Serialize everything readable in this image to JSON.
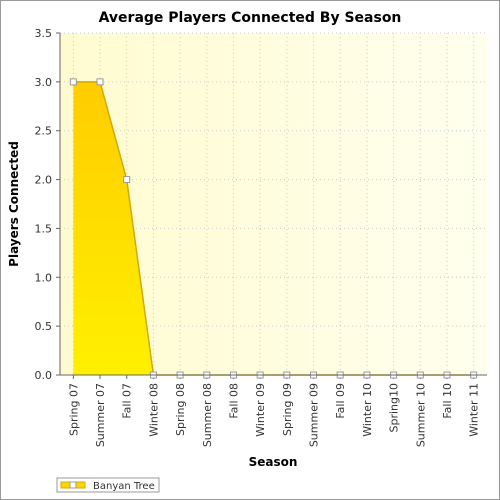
{
  "chart_data": {
    "type": "area",
    "title": "Average Players Connected By Season",
    "x_label": "Season",
    "y_label": "Players Connected",
    "categories": [
      "Spring 07",
      "Summer 07",
      "Fall 07",
      "Winter 08",
      "Spring 08",
      "Summer 08",
      "Fall 08",
      "Winter 09",
      "Spring 09",
      "Summer 09",
      "Fall 09",
      "Winter 10",
      "Spring10",
      "Summer 10",
      "Fall 10",
      "Winter 11"
    ],
    "series": [
      {
        "name": "Banyan Tree",
        "color": "#ffd700",
        "values": [
          3,
          3,
          2,
          0,
          0,
          0,
          0,
          0,
          0,
          0,
          0,
          0,
          0,
          0,
          0,
          0
        ]
      }
    ],
    "ylim": [
      0,
      3.5
    ],
    "yticks": [
      {
        "value": 0,
        "label": "0.0"
      },
      0.5,
      {
        "value": 1,
        "label": "1.0"
      },
      1.5,
      {
        "value": 2,
        "label": "2.0"
      },
      2.5,
      {
        "value": 3,
        "label": "3.0"
      },
      3.5
    ],
    "grid": true,
    "legend": "bottom-left"
  }
}
